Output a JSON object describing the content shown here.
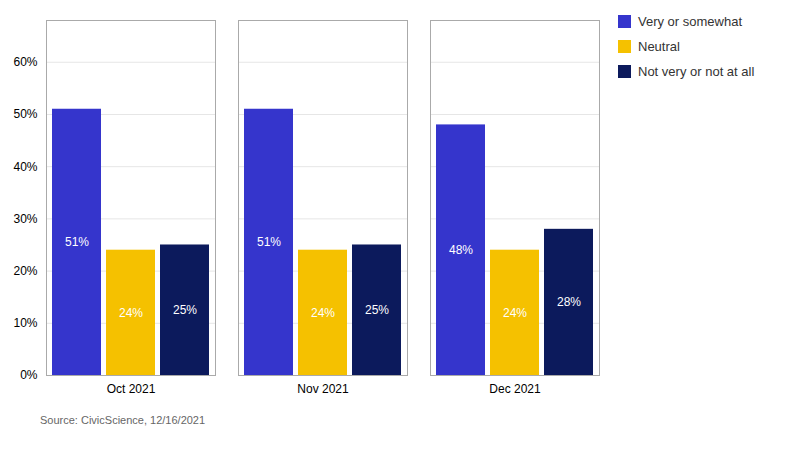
{
  "chart_data": {
    "type": "bar",
    "categories": [
      "Oct 2021",
      "Nov 2021",
      "Dec 2021"
    ],
    "series": [
      {
        "name": "Very or somewhat",
        "color": "#3535cc",
        "values": [
          51,
          51,
          48
        ],
        "value_labels": [
          "51%",
          "51%",
          "48%"
        ]
      },
      {
        "name": "Neutral",
        "color": "#f5c100",
        "values": [
          24,
          24,
          24
        ],
        "value_labels": [
          "24%",
          "24%",
          "24%"
        ]
      },
      {
        "name": "Not very or not at all",
        "color": "#0c1a5c",
        "values": [
          25,
          25,
          28
        ],
        "value_labels": [
          "25%",
          "25%",
          "28%"
        ]
      }
    ],
    "ylim": [
      0,
      68
    ],
    "yticks": [
      {
        "value": 0,
        "label": "0%"
      },
      {
        "value": 10,
        "label": "10%"
      },
      {
        "value": 20,
        "label": "20%"
      },
      {
        "value": 30,
        "label": "30%"
      },
      {
        "value": 40,
        "label": "40%"
      },
      {
        "value": 50,
        "label": "50%"
      },
      {
        "value": 60,
        "label": "60%"
      }
    ],
    "grid": true,
    "legend": "right",
    "data_labels": true,
    "caption": "Source: CivicScience, 12/16/2021"
  }
}
